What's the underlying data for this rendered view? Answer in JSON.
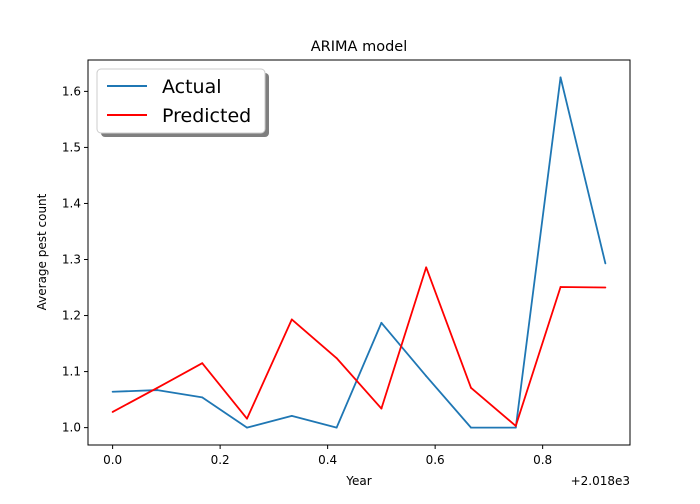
{
  "chart_data": {
    "type": "line",
    "title": "ARIMA model",
    "xlabel": "Year",
    "ylabel": "Average pest count",
    "x_offset_text": "+2.018e3",
    "x": [
      2018.0,
      2018.0833,
      2018.1667,
      2018.25,
      2018.3333,
      2018.4167,
      2018.5,
      2018.5833,
      2018.6667,
      2018.75,
      2018.8333,
      2018.9167
    ],
    "xlim": [
      2017.9542,
      2018.9625
    ],
    "ylim": [
      0.969,
      1.656
    ],
    "x_ticks": [
      {
        "value": 2018.0,
        "label": "0.0"
      },
      {
        "value": 2018.2,
        "label": "0.2"
      },
      {
        "value": 2018.4,
        "label": "0.4"
      },
      {
        "value": 2018.6,
        "label": "0.6"
      },
      {
        "value": 2018.8,
        "label": "0.8"
      }
    ],
    "y_ticks": [
      {
        "value": 1.0,
        "label": "1.0"
      },
      {
        "value": 1.1,
        "label": "1.1"
      },
      {
        "value": 1.2,
        "label": "1.2"
      },
      {
        "value": 1.3,
        "label": "1.3"
      },
      {
        "value": 1.4,
        "label": "1.4"
      },
      {
        "value": 1.5,
        "label": "1.5"
      },
      {
        "value": 1.6,
        "label": "1.6"
      }
    ],
    "grid": false,
    "legend_position": "top-left",
    "series": [
      {
        "name": "Actual",
        "color": "#1f77b4",
        "values": [
          1.064,
          1.067,
          1.054,
          1.0,
          1.021,
          1.0,
          1.187,
          1.092,
          1.0,
          1.0,
          1.625,
          1.293
        ]
      },
      {
        "name": "Predicted",
        "color": "#ff0000",
        "values": [
          1.028,
          1.071,
          1.115,
          1.016,
          1.193,
          1.124,
          1.034,
          1.286,
          1.071,
          1.003,
          1.251,
          1.25
        ]
      }
    ]
  }
}
